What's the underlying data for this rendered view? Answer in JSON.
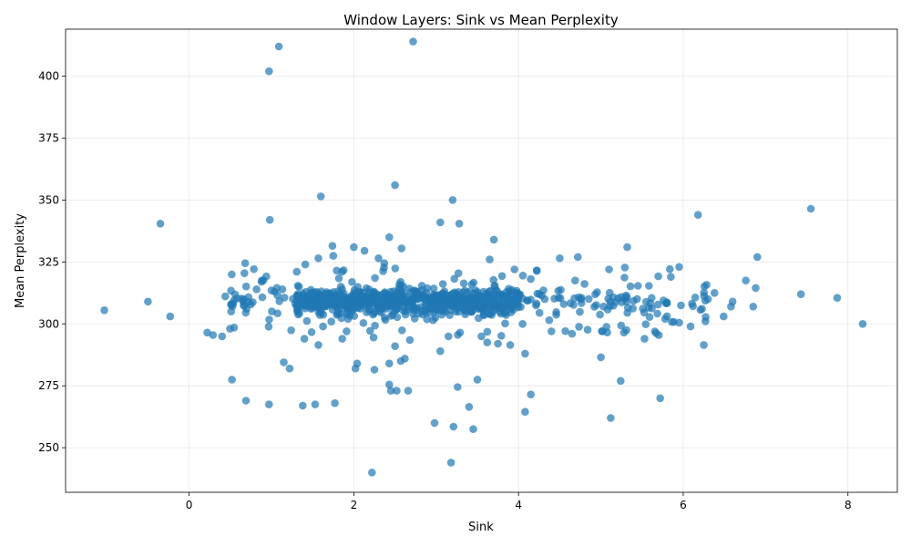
{
  "chart_data": {
    "type": "scatter",
    "title": "Window Layers: Sink vs Mean Perplexity",
    "xlabel": "Sink",
    "ylabel": "Mean Perplexity",
    "xlim": [
      -1.5,
      8.6
    ],
    "ylim": [
      232,
      419
    ],
    "xticks": [
      0,
      2,
      4,
      6,
      8
    ],
    "yticks": [
      250,
      275,
      300,
      325,
      350,
      375,
      400
    ],
    "grid": true,
    "color": "#1f77b4",
    "outliers": [
      [
        2.72,
        414
      ],
      [
        1.09,
        412
      ],
      [
        0.97,
        402
      ],
      [
        2.5,
        356
      ],
      [
        1.6,
        351.5
      ],
      [
        3.2,
        350
      ],
      [
        7.55,
        346.5
      ],
      [
        6.18,
        344
      ],
      [
        0.98,
        342
      ],
      [
        -0.35,
        340.5
      ],
      [
        3.05,
        341
      ],
      [
        3.28,
        340.5
      ],
      [
        3.7,
        334
      ],
      [
        2.43,
        335
      ],
      [
        1.74,
        331.5
      ],
      [
        2.58,
        330.5
      ],
      [
        2.0,
        331
      ],
      [
        5.32,
        331
      ],
      [
        2.13,
        329.5
      ],
      [
        4.72,
        327
      ],
      [
        4.5,
        326.5
      ],
      [
        6.9,
        327
      ],
      [
        1.57,
        326.5
      ],
      [
        3.65,
        326
      ],
      [
        1.75,
        327.5
      ],
      [
        0.68,
        324.5
      ],
      [
        1.41,
        324
      ],
      [
        2.3,
        326.5
      ],
      [
        2.37,
        324.5
      ],
      [
        5.95,
        323
      ],
      [
        1.0,
        313.5
      ],
      [
        0.88,
        317
      ],
      [
        3.95,
        322
      ],
      [
        5.1,
        322
      ],
      [
        5.85,
        319
      ],
      [
        6.76,
        317.5
      ],
      [
        7.43,
        312
      ],
      [
        7.87,
        310.5
      ],
      [
        8.18,
        300
      ],
      [
        -1.03,
        305.5
      ],
      [
        -0.5,
        309
      ],
      [
        -0.23,
        303
      ],
      [
        0.29,
        295.5
      ],
      [
        0.4,
        295
      ],
      [
        0.51,
        305
      ],
      [
        0.52,
        277.5
      ],
      [
        0.69,
        269
      ],
      [
        0.97,
        267.5
      ],
      [
        1.15,
        284.5
      ],
      [
        1.22,
        282
      ],
      [
        1.38,
        267
      ],
      [
        1.4,
        294
      ],
      [
        1.53,
        267.5
      ],
      [
        1.57,
        291.5
      ],
      [
        1.77,
        268
      ],
      [
        1.86,
        294
      ],
      [
        2.02,
        282
      ],
      [
        2.04,
        284
      ],
      [
        2.25,
        281.5
      ],
      [
        2.24,
        294.5
      ],
      [
        2.43,
        284
      ],
      [
        2.43,
        275.5
      ],
      [
        2.45,
        273
      ],
      [
        2.5,
        291
      ],
      [
        2.52,
        273
      ],
      [
        2.57,
        285
      ],
      [
        2.62,
        286
      ],
      [
        2.66,
        273
      ],
      [
        2.68,
        293.5
      ],
      [
        2.22,
        240
      ],
      [
        2.98,
        260
      ],
      [
        3.05,
        289
      ],
      [
        3.15,
        295
      ],
      [
        3.18,
        244
      ],
      [
        3.21,
        258.5
      ],
      [
        3.26,
        274.5
      ],
      [
        3.29,
        296.5
      ],
      [
        3.4,
        266.5
      ],
      [
        3.45,
        257.5
      ],
      [
        3.5,
        277.5
      ],
      [
        3.55,
        295
      ],
      [
        3.62,
        292.5
      ],
      [
        3.75,
        292
      ],
      [
        3.9,
        291.5
      ],
      [
        4.08,
        288
      ],
      [
        4.08,
        264.5
      ],
      [
        4.15,
        271.5
      ],
      [
        4.4,
        297
      ],
      [
        4.65,
        296
      ],
      [
        5.0,
        286.5
      ],
      [
        5.02,
        297
      ],
      [
        5.12,
        262
      ],
      [
        5.24,
        277
      ],
      [
        5.28,
        296.5
      ],
      [
        5.53,
        294
      ],
      [
        5.72,
        270
      ],
      [
        6.25,
        291.5
      ],
      [
        6.49,
        303
      ],
      [
        6.3,
        310
      ],
      [
        6.38,
        312.5
      ],
      [
        6.58,
        307
      ],
      [
        6.6,
        309
      ],
      [
        6.85,
        307
      ],
      [
        6.88,
        314.5
      ],
      [
        5.78,
        302
      ],
      [
        5.95,
        300.5
      ],
      [
        0.22,
        296.5
      ],
      [
        4.05,
        300
      ]
    ],
    "core_pattern": {
      "x_start": 0.35,
      "x_span": 6.0,
      "y_center": 309,
      "y_spread": 3.6
    }
  }
}
